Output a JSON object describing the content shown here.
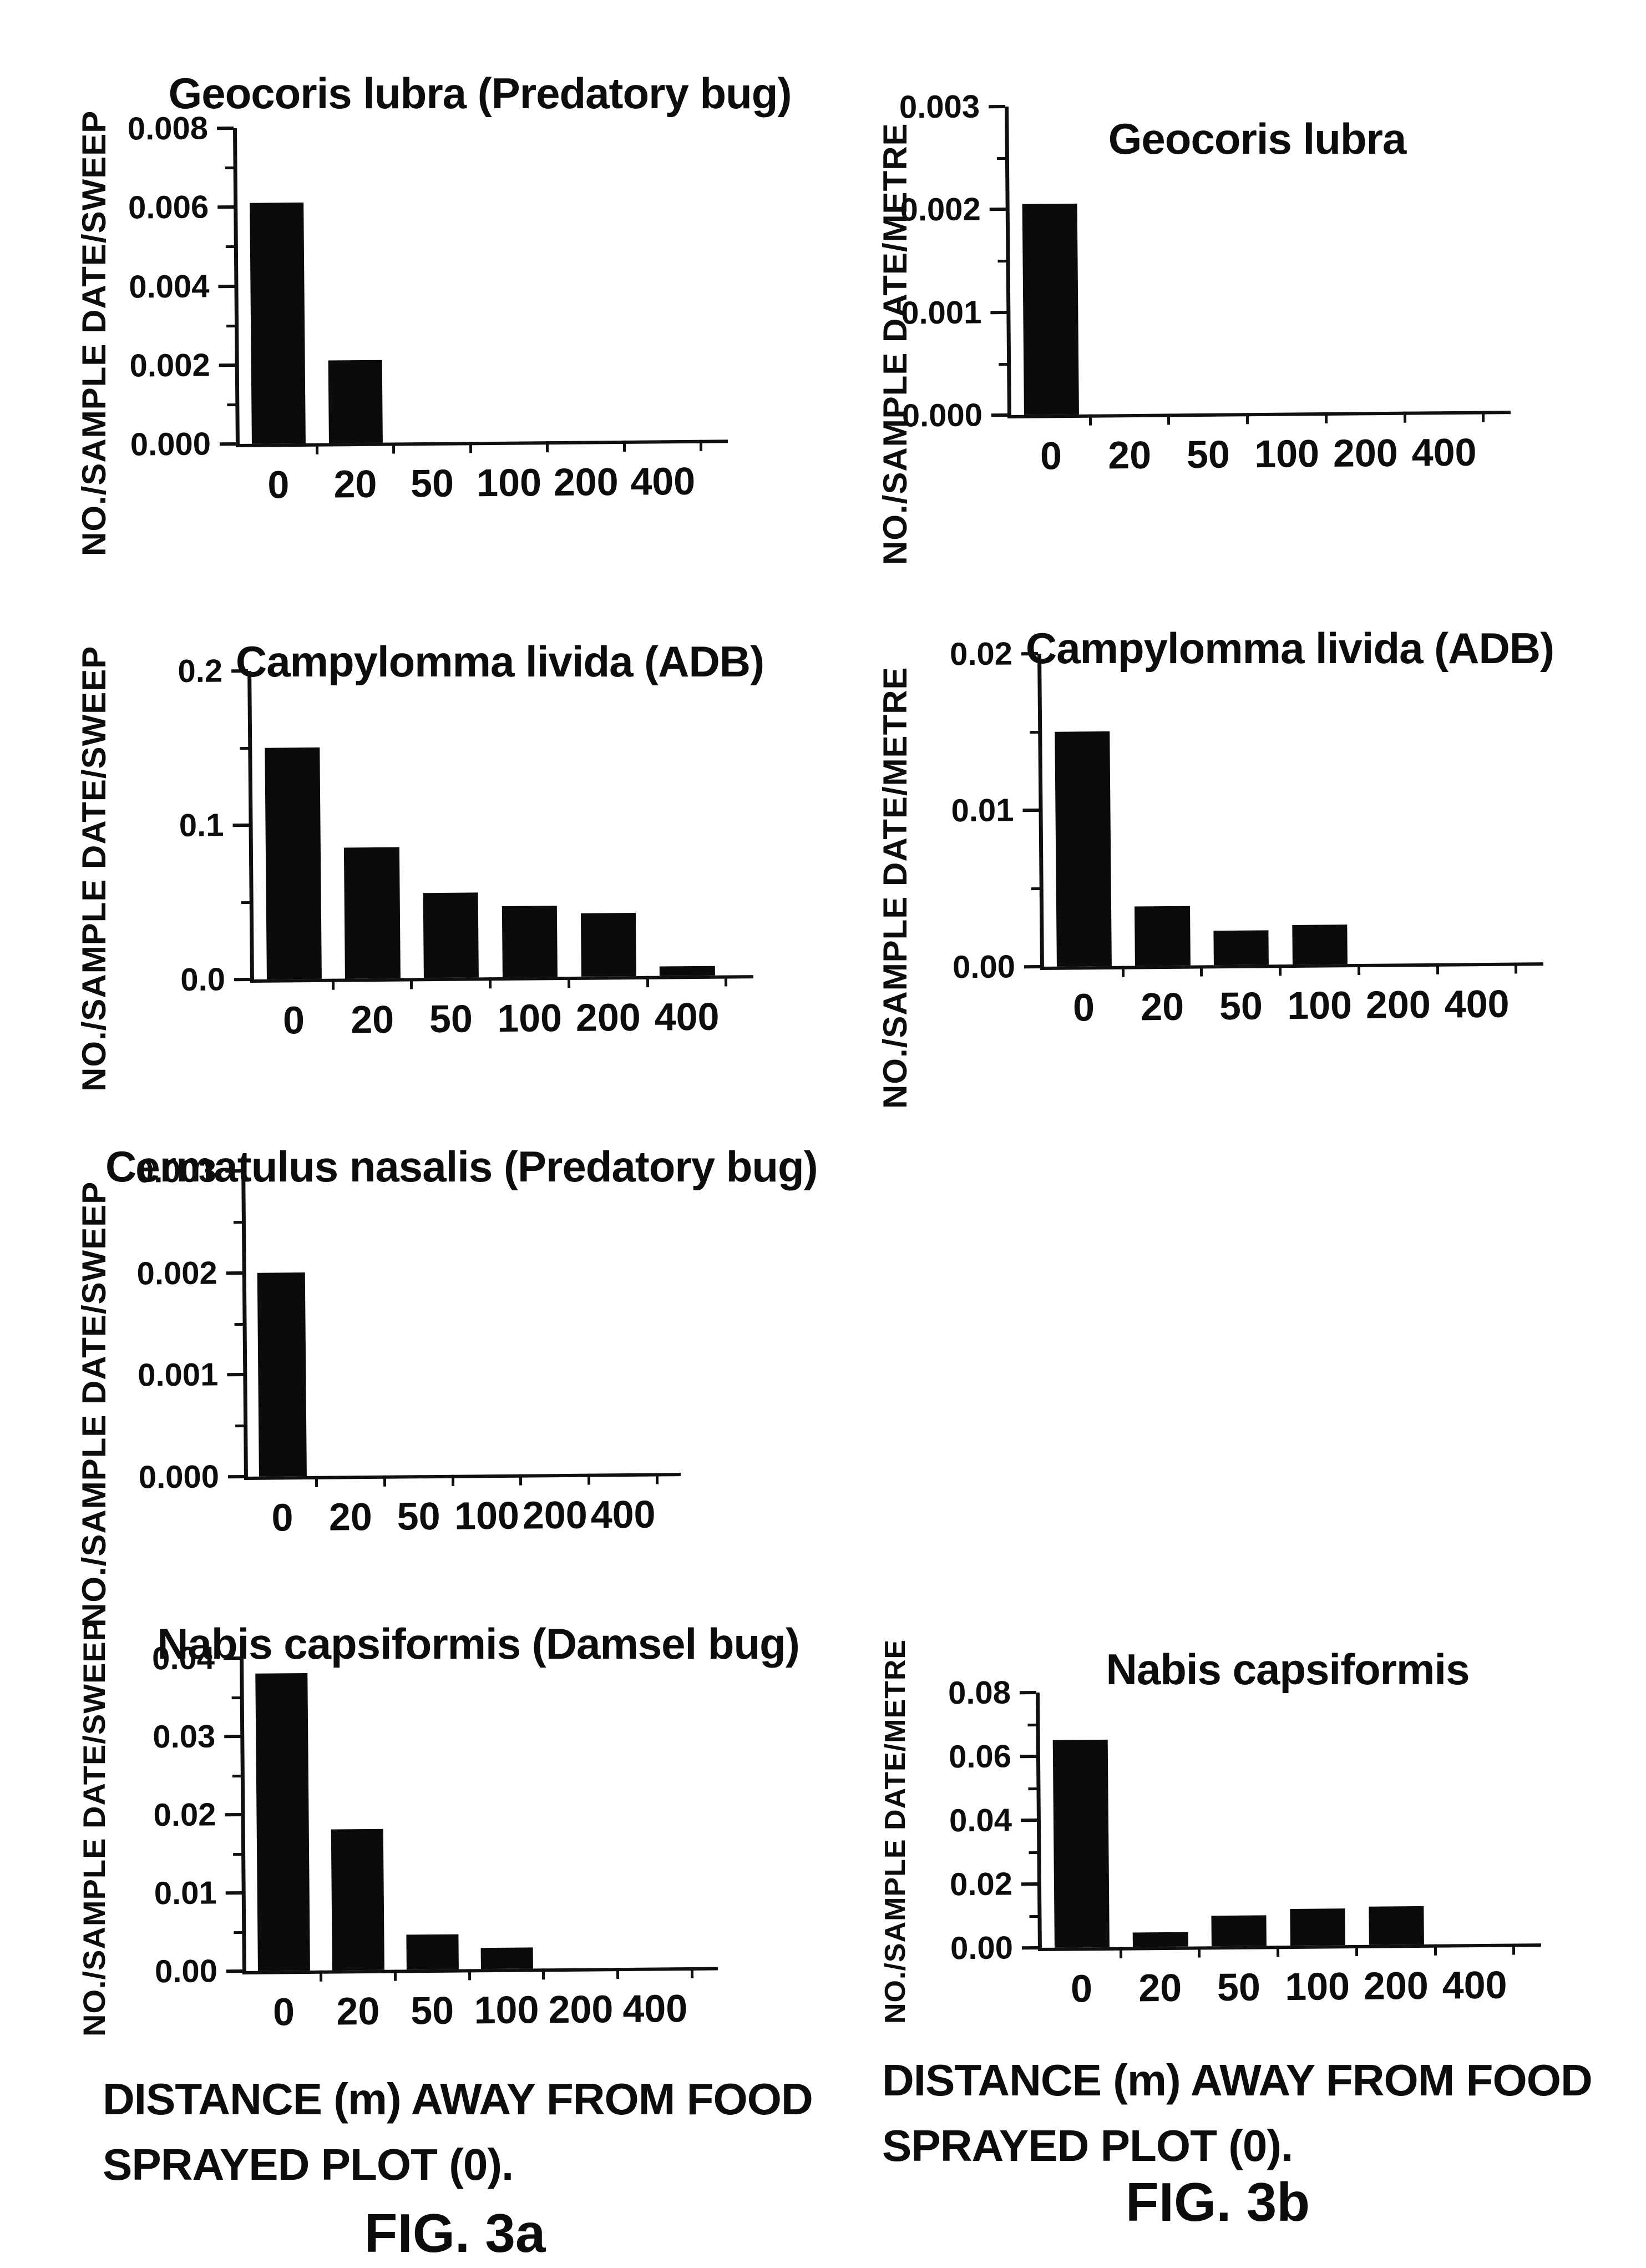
{
  "figure": {
    "ink_color": "#0b0b0b",
    "paper_color": "#ffffff"
  },
  "chart_data": [
    {
      "type": "bar",
      "title": "Geocoris lubra (Predatory bug)",
      "ylabel": "NO./SAMPLE DATE/SWEEP",
      "xlabel": "DISTANCE (m) AWAY FROM FOOD SPRAYED PLOT (0).",
      "categories": [
        "0",
        "20",
        "50",
        "100",
        "200",
        "400"
      ],
      "values": [
        0.0061,
        0.0021,
        0,
        0,
        0,
        0
      ],
      "yticks": [
        "0.008",
        "0.006",
        "0.004",
        "0.002",
        "0.000"
      ],
      "ylim": [
        0,
        0.008
      ],
      "figure": "3a",
      "legend": "none",
      "grid": "off"
    },
    {
      "type": "bar",
      "title": "Geocoris lubra",
      "ylabel": "NO./SAMPLE DATE/METRE",
      "xlabel": "DISTANCE (m) AWAY FROM FOOD SPRAYED PLOT (0).",
      "categories": [
        "0",
        "20",
        "50",
        "100",
        "200",
        "400"
      ],
      "values": [
        0.00205,
        0,
        0,
        0,
        0,
        0
      ],
      "yticks": [
        "0.003",
        "0.002",
        "0.001",
        "0.000"
      ],
      "ylim": [
        0,
        0.003
      ],
      "figure": "3b",
      "legend": "none",
      "grid": "off"
    },
    {
      "type": "bar",
      "title": "Campylomma livida (ADB)",
      "ylabel": "NO./SAMPLE DATE/SWEEP",
      "xlabel": "DISTANCE (m) AWAY FROM FOOD SPRAYED PLOT (0).",
      "categories": [
        "0",
        "20",
        "50",
        "100",
        "200",
        "400"
      ],
      "values": [
        0.15,
        0.085,
        0.055,
        0.046,
        0.041,
        0.006
      ],
      "yticks": [
        "0.2",
        "0.1",
        "0.0"
      ],
      "ylim": [
        0,
        0.2
      ],
      "figure": "3a",
      "legend": "none",
      "grid": "off"
    },
    {
      "type": "bar",
      "title": "Campylomma livida (ADB)",
      "ylabel": "NO./SAMPLE DATE/METRE",
      "xlabel": "DISTANCE (m) AWAY FROM FOOD SPRAYED PLOT (0).",
      "categories": [
        "0",
        "20",
        "50",
        "100",
        "200",
        "400"
      ],
      "values": [
        0.015,
        0.0038,
        0.0022,
        0.0025,
        0,
        0
      ],
      "yticks": [
        "0.02",
        "0.01",
        "0.00"
      ],
      "ylim": [
        0,
        0.02
      ],
      "figure": "3b",
      "legend": "none",
      "grid": "off"
    },
    {
      "type": "bar",
      "title": "Cermatulus nasalis (Predatory bug)",
      "ylabel": "NO./SAMPLE DATE/SWEEP",
      "xlabel": "DISTANCE (m) AWAY FROM FOOD SPRAYED PLOT (0).",
      "categories": [
        "0",
        "20",
        "50",
        "100",
        "200",
        "400"
      ],
      "values": [
        0.002,
        0,
        0,
        0,
        0,
        0
      ],
      "yticks": [
        "0.003",
        "0.002",
        "0.001",
        "0.000"
      ],
      "ylim": [
        0,
        0.003
      ],
      "figure": "3a",
      "legend": "none",
      "grid": "off"
    },
    {
      "type": "bar",
      "title": "Nabis capsiformis (Damsel bug)",
      "ylabel": "NO./SAMPLE DATE/SWEEP",
      "xlabel": "DISTANCE (m) AWAY FROM FOOD SPRAYED PLOT (0).",
      "categories": [
        "0",
        "20",
        "50",
        "100",
        "200",
        "400"
      ],
      "values": [
        0.038,
        0.018,
        0.0045,
        0.0027,
        0,
        0
      ],
      "yticks": [
        "0.04",
        "0.03",
        "0.02",
        "0.01",
        "0.00"
      ],
      "ylim": [
        0,
        0.04
      ],
      "figure": "3a",
      "legend": "none",
      "grid": "off"
    },
    {
      "type": "bar",
      "title": "Nabis capsiformis",
      "ylabel": "NO./SAMPLE DATE/METRE",
      "xlabel": "DISTANCE (m) AWAY FROM FOOD SPRAYED PLOT (0).",
      "categories": [
        "0",
        "20",
        "50",
        "100",
        "200",
        "400"
      ],
      "values": [
        0.065,
        0.0045,
        0.0095,
        0.0115,
        0.012,
        0
      ],
      "yticks": [
        "0.08",
        "0.06",
        "0.04",
        "0.02",
        "0.00"
      ],
      "ylim": [
        0,
        0.08
      ],
      "figure": "3b",
      "legend": "none",
      "grid": "off"
    }
  ],
  "footers": {
    "left": {
      "line1": "DISTANCE (m) AWAY FROM FOOD",
      "line2": "SPRAYED PLOT (0).",
      "fig": "FIG. 3a"
    },
    "right": {
      "line1": "DISTANCE (m) AWAY FROM FOOD",
      "line2": "SPRAYED PLOT (0).",
      "fig": "FIG. 3b"
    }
  }
}
